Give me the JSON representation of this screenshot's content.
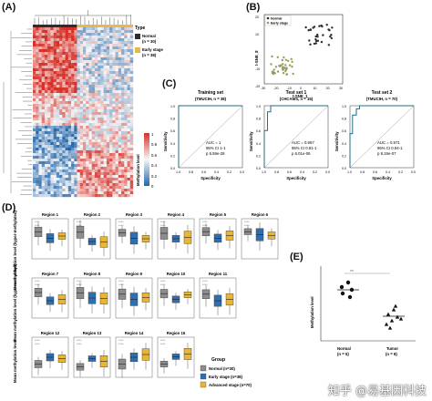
{
  "panel_a": {
    "letter": "(A)",
    "legend": {
      "title": "Type",
      "items": [
        {
          "label": "Normal",
          "sub": "(n = 30)",
          "color": "#2c2c34"
        },
        {
          "label": "Early stage",
          "sub": "(n = 38)",
          "color": "#e8b84a"
        }
      ],
      "scale_title": "Methylation level",
      "scale_ticks": [
        "1",
        "0.8",
        "0.6",
        "0.4",
        "0.2",
        "0"
      ]
    }
  },
  "panel_b": {
    "letter": "(B)",
    "legend": [
      {
        "label": "Normal",
        "color": "#2c2c34"
      },
      {
        "label": "Early stage",
        "color": "#9a9a5a"
      }
    ],
    "ylabel": "t-SNE_2",
    "xlabel": "t-SNE_1",
    "xticks": [
      "-30",
      "-20",
      "-10",
      "0",
      "10",
      "20",
      "30"
    ],
    "yticks": [
      "20",
      "10",
      "0",
      "-10",
      "-20"
    ]
  },
  "panel_c": {
    "letter": "(C)",
    "xlabel": "Specificity",
    "ylabel": "Sensitivity",
    "xticks": [
      "1.0",
      "0.8",
      "0.6",
      "0.4",
      "0.2",
      "0.0"
    ],
    "yticks": [
      "1.0",
      "0.8",
      "0.6",
      "0.4",
      "0.2",
      "0.0"
    ],
    "plots": [
      {
        "title": "Training set",
        "sub": "(TMUCIH, n = 38)",
        "auc": "AUC = 1",
        "ci": "95% CI 1-1",
        "p": "p 5.59e-28"
      },
      {
        "title": "Test set 1",
        "sub": "(CHCAMS, n = 15)",
        "auc": "AUC = 0.967",
        "ci": "95% CI 0.91-1",
        "p": "p 6.01e-06"
      },
      {
        "title": "Test set 2",
        "sub": "(TMUCIH, n = 70)",
        "auc": "AUC = 0.971",
        "ci": "95% CI 0.94-1",
        "p": "p 8.19e-07"
      }
    ]
  },
  "panel_d": {
    "letter": "(D)",
    "ylabel_top": "Mean methylation level (hyper-methylated)",
    "ylabel_mid": "Mean methylation level (hypo-methylated)",
    "ylabel_bot": "Mean methylation level",
    "regions": [
      "Region 1",
      "Region 2",
      "Region 3",
      "Region 4",
      "Region 5",
      "Region 6",
      "Region 7",
      "Region 8",
      "Region 9",
      "Region 10",
      "Region 11",
      "Region 12",
      "Region 13",
      "Region 14",
      "Region 15"
    ],
    "sig": "****",
    "legend": {
      "title": "Group",
      "items": [
        {
          "label": "Normal (n=30)",
          "color": "#8c8c8c"
        },
        {
          "label": "Early stage (n=38)",
          "color": "#2f6fb0"
        },
        {
          "label": "Advanced stage (n=70)",
          "color": "#e8b535"
        }
      ]
    }
  },
  "panel_e": {
    "letter": "(E)",
    "ylabel": "Methylation level",
    "sig": "**",
    "groups": [
      {
        "label": "Normal",
        "sub": "(n = 5)"
      },
      {
        "label": "Tumor",
        "sub": "(n = 8)"
      }
    ]
  },
  "watermark": "知乎 @易基因科技"
}
